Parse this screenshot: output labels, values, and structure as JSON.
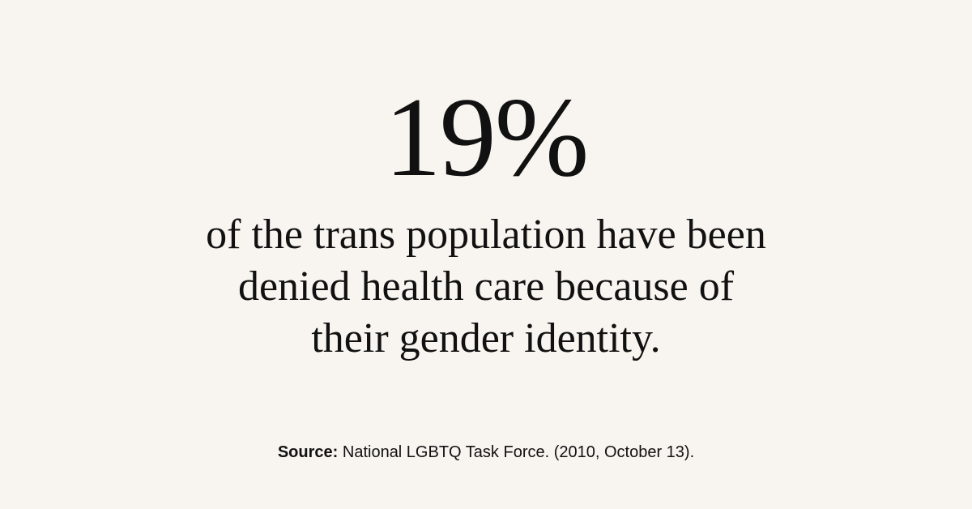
{
  "stat": "19%",
  "description": [
    "of the trans population have been",
    "denied health care because of",
    "their gender identity."
  ],
  "source": {
    "label": "Source:",
    "text": "National LGBTQ Task Force. (2010, October 13)."
  }
}
